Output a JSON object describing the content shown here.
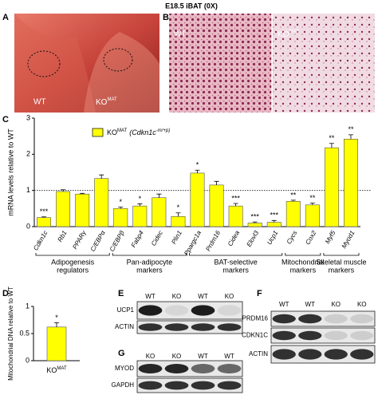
{
  "title": "E18.5 iBAT (0X)",
  "panels": {
    "a": {
      "letter": "A",
      "wt": "WT",
      "ko": "KO",
      "ko_sup": "MAT"
    },
    "b": {
      "letter": "B",
      "wt": "WT",
      "ko": "KO",
      "ko_sup": "MAT"
    },
    "c": {
      "letter": "C"
    },
    "d": {
      "letter": "D"
    },
    "e": {
      "letter": "E",
      "lanes": [
        "WT",
        "KO",
        "WT",
        "KO"
      ],
      "rows": [
        "UCP1",
        "ACTIN"
      ]
    },
    "f": {
      "letter": "F",
      "lanes": [
        "WT",
        "WT",
        "KO",
        "KO"
      ],
      "rows": [
        "PRDM16",
        "CDKN1C",
        "ACTIN"
      ]
    },
    "g": {
      "letter": "G",
      "lanes": [
        "KO",
        "KO",
        "WT",
        "WT"
      ],
      "rows": [
        "MYOD",
        "GAPDH"
      ]
    }
  },
  "chart_data": [
    {
      "type": "bar",
      "ylabel": "mRNA levels relative to WT",
      "categories": [
        "Cdkn1c",
        "Rb1",
        "PPARγ",
        "C/EBPα",
        "C/EBPβ",
        "Fabp4",
        "Cidec",
        "Plin1",
        "Ppargc1a",
        "Prdm16",
        "Cidea",
        "Elovl3",
        "Ucp1",
        "Cycs",
        "Cox2",
        "Myf5",
        "Myod1"
      ],
      "series": [
        {
          "name": "KO",
          "name_sup": "MAT",
          "note": "(Cdkn1c",
          "note_sup": "-m/+p)",
          "color": "#ffff00",
          "values": [
            0.25,
            0.97,
            0.9,
            1.33,
            0.5,
            0.57,
            0.8,
            0.28,
            1.48,
            1.15,
            0.57,
            0.1,
            0.12,
            0.7,
            0.6,
            2.18,
            2.42
          ],
          "errors": [
            0.02,
            0.05,
            0.02,
            0.1,
            0.04,
            0.06,
            0.1,
            0.1,
            0.08,
            0.1,
            0.07,
            0.03,
            0.05,
            0.03,
            0.05,
            0.12,
            0.12
          ],
          "annotations": [
            "***",
            null,
            null,
            null,
            "*",
            "*",
            null,
            "*",
            "*",
            null,
            "***",
            "***",
            "***",
            "**",
            "**",
            "**",
            "**"
          ]
        }
      ],
      "reference_line": 1,
      "groups": [
        {
          "lines": [
            "Adipogenesis",
            "regulators"
          ]
        },
        {
          "lines": [
            "Pan-adipocyte",
            "markers"
          ]
        },
        {
          "lines": [
            "BAT-selective",
            "markers"
          ]
        },
        {
          "lines": [
            "Mitochondrial",
            "markers"
          ]
        },
        {
          "lines": [
            "Skeletal muscle",
            "markers"
          ]
        }
      ],
      "ylim": [
        0,
        3
      ],
      "yticks": [
        0,
        1,
        2,
        3
      ]
    },
    {
      "type": "bar",
      "ylabel": "Mitochondrial DNA relative to WT",
      "categories": [
        "KO"
      ],
      "category_sup": "MAT",
      "series": [
        {
          "color": "#ffff00",
          "values": [
            0.62
          ],
          "errors": [
            0.08
          ],
          "annotations": [
            "*"
          ]
        }
      ],
      "ylim": [
        0,
        1
      ],
      "yticks": [
        0,
        0.5,
        1
      ]
    }
  ]
}
